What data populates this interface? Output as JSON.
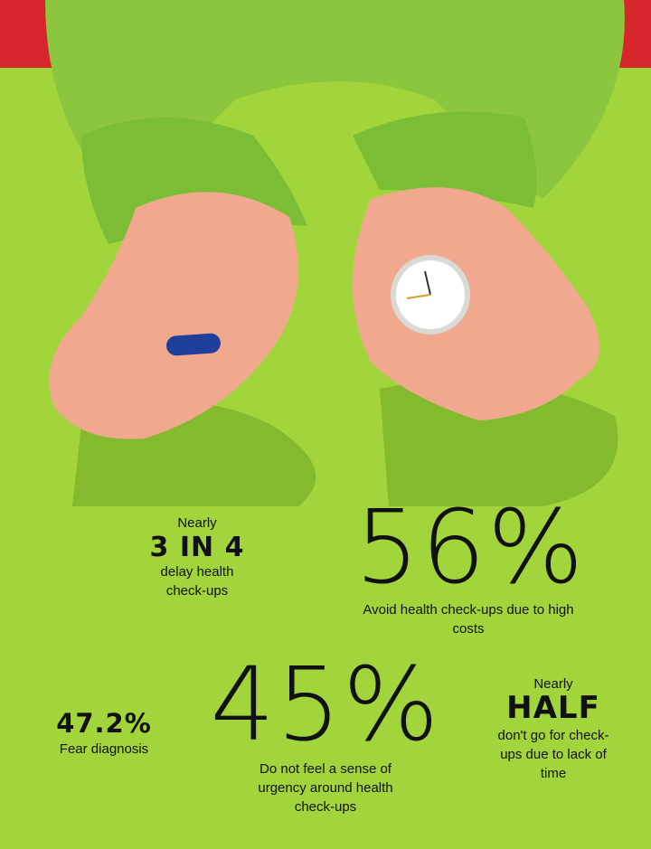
{
  "stats": [
    {
      "prefix": "Nearly",
      "value": "3 IN 4",
      "description": "delay health check-ups"
    },
    {
      "value": "56%",
      "description": "Avoid health check-ups due to high costs"
    },
    {
      "value": "47.2%",
      "description": "Fear diagnosis"
    },
    {
      "value": "45%",
      "description": "Do not feel a sense of urgency around health check-ups"
    },
    {
      "prefix": "Nearly",
      "value": "HALF",
      "description": "don't go for check-ups due to lack of time"
    }
  ]
}
